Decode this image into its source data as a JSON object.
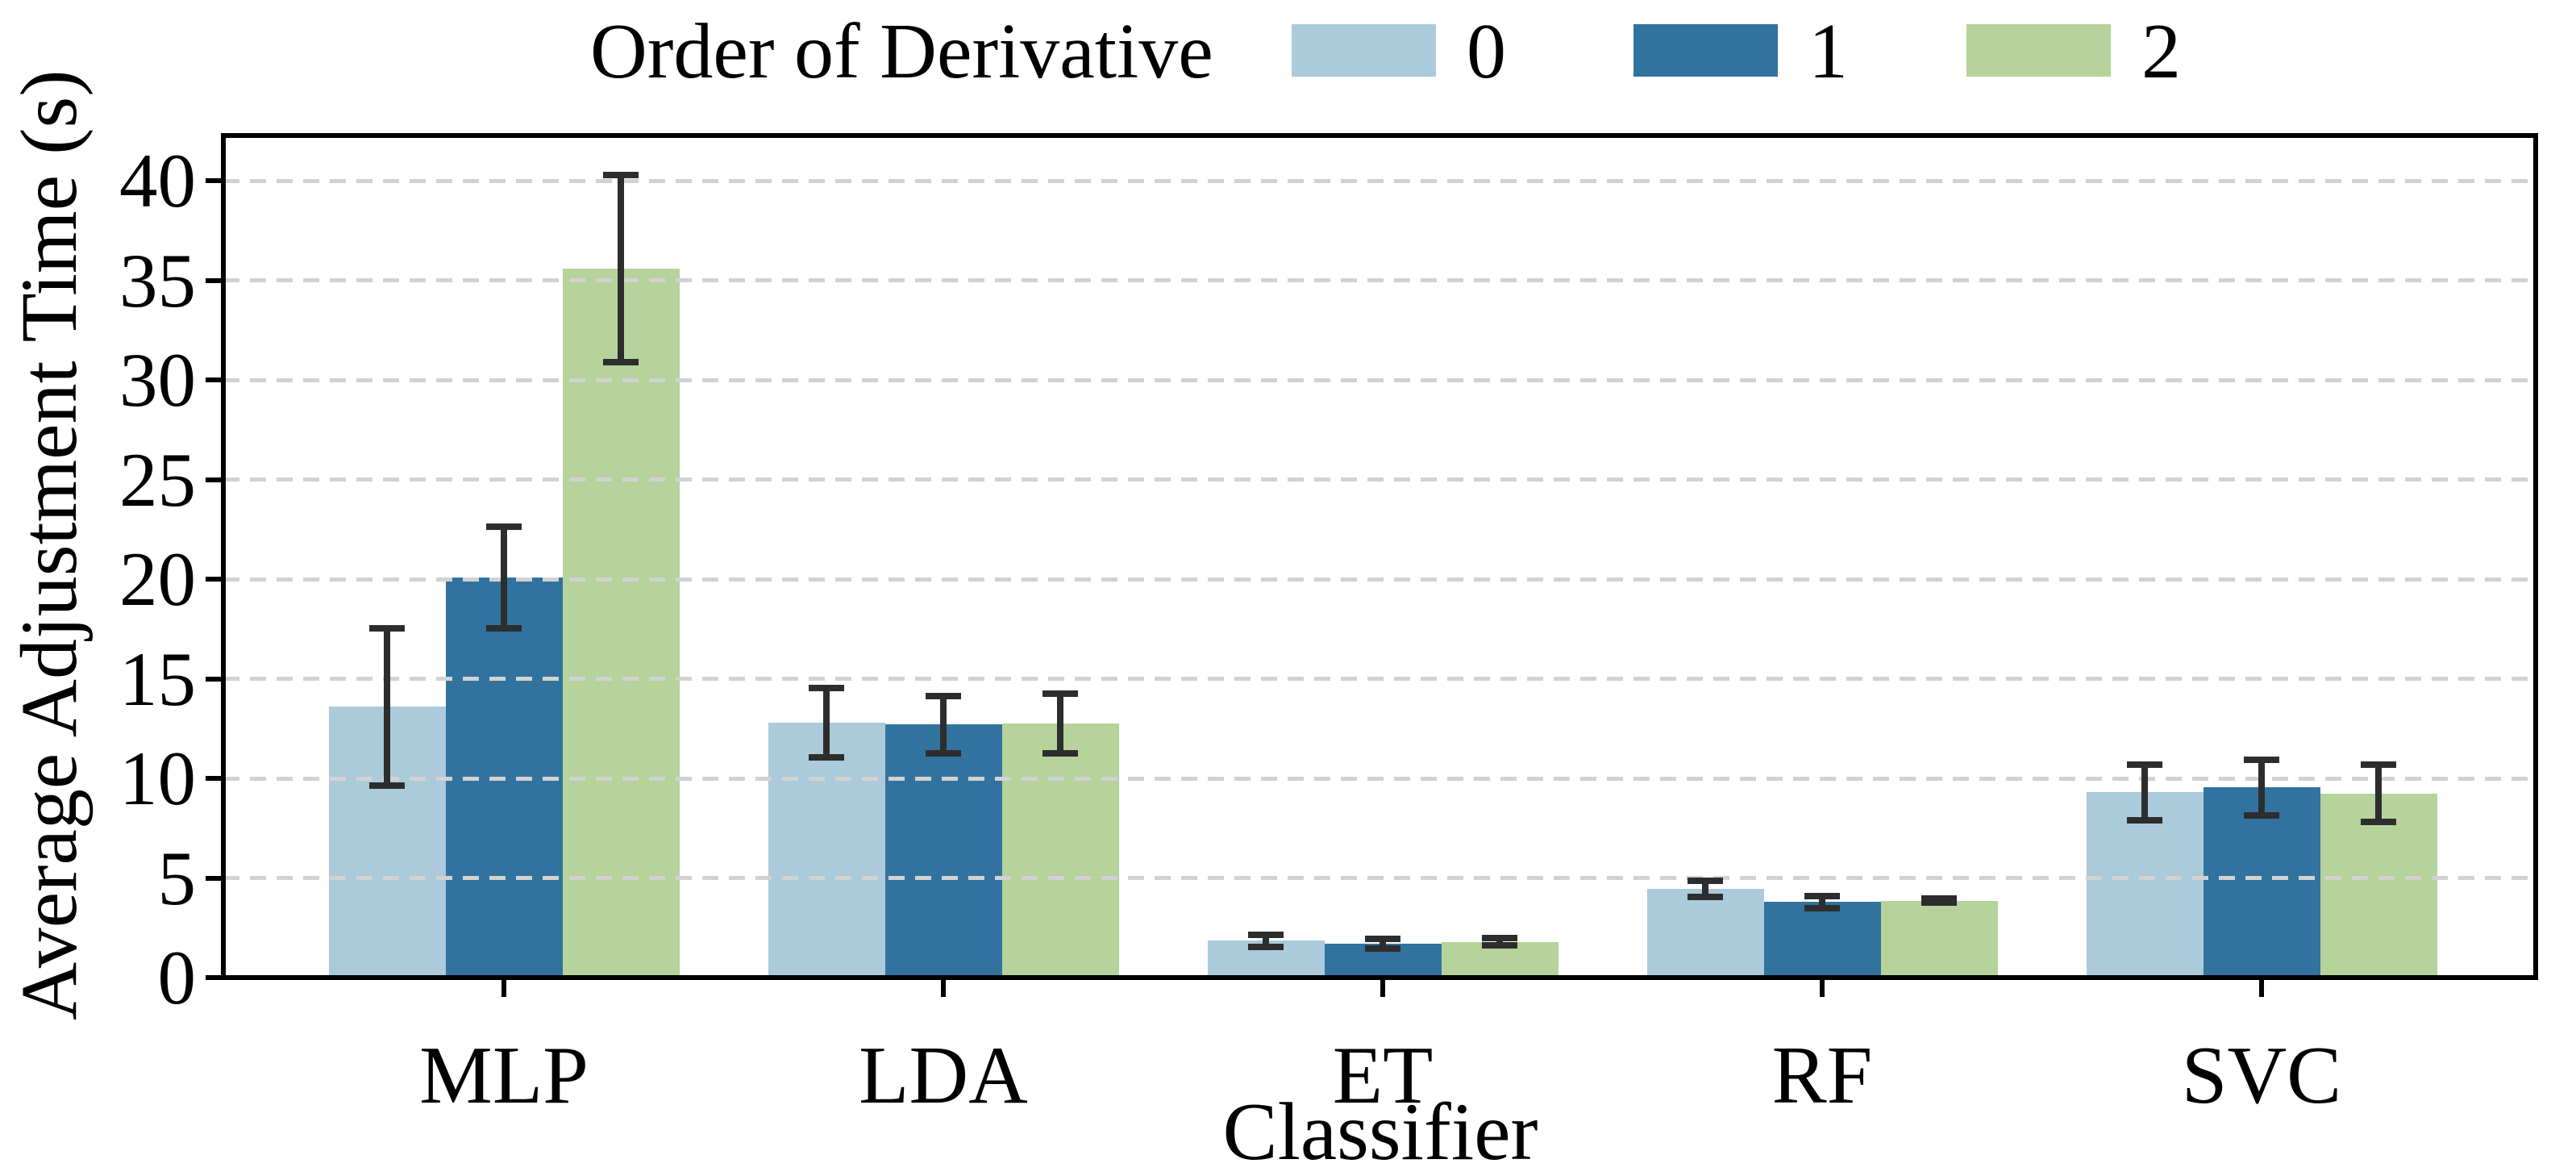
{
  "chart_data": {
    "type": "bar",
    "title": "",
    "xlabel": "Classifier",
    "ylabel": "Average Adjustment Time (s)",
    "legend_title": "Order of Derivative",
    "legend_position": "top",
    "categories": [
      "MLP",
      "LDA",
      "ET",
      "RF",
      "SVC"
    ],
    "series": [
      {
        "name": "0",
        "color": "#ABCADB",
        "values": [
          13.6,
          12.8,
          1.85,
          4.45,
          9.3
        ],
        "errors": [
          3.95,
          1.75,
          0.3,
          0.4,
          1.4
        ]
      },
      {
        "name": "1",
        "color": "#31739E",
        "values": [
          20.1,
          12.7,
          1.7,
          3.8,
          9.55
        ],
        "errors": [
          2.55,
          1.45,
          0.25,
          0.3,
          1.4
        ]
      },
      {
        "name": "2",
        "color": "#B5D39A",
        "values": [
          35.6,
          12.75,
          1.8,
          3.85,
          9.25
        ],
        "errors": [
          4.7,
          1.5,
          0.2,
          0.1,
          1.45
        ]
      }
    ],
    "yticks": [
      0,
      5,
      10,
      15,
      20,
      25,
      30,
      35,
      40
    ],
    "ylim": [
      0,
      42.3
    ],
    "grid": "horizontal dashed gridlines every 5 units, drawn over bars",
    "grid_color": "#D2D2D2",
    "errorbar_color": "#2D2D2D",
    "spine_color": "#000000"
  }
}
